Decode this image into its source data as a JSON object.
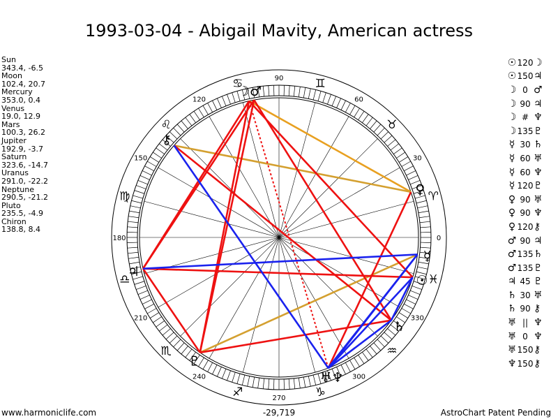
{
  "title": "1993-03-04 - Abigail Mavity, American actress",
  "planets": [
    {
      "name": "Sun",
      "pos": "343.4, -6.5",
      "glyph": "☉"
    },
    {
      "name": "Moon",
      "pos": "102.4, 20.7",
      "glyph": "☽"
    },
    {
      "name": "Mercury",
      "pos": "353.0, 0.4",
      "glyph": "☿"
    },
    {
      "name": "Venus",
      "pos": "19.0, 12.9",
      "glyph": "♀"
    },
    {
      "name": "Mars",
      "pos": "100.3, 26.2",
      "glyph": "♂"
    },
    {
      "name": "Jupiter",
      "pos": "192.9, -3.7",
      "glyph": "♃"
    },
    {
      "name": "Saturn",
      "pos": "323.6, -14.7",
      "glyph": "♄"
    },
    {
      "name": "Uranus",
      "pos": "291.0, -22.2",
      "glyph": "♅"
    },
    {
      "name": "Neptune",
      "pos": "290.5, -21.2",
      "glyph": "♆"
    },
    {
      "name": "Pluto",
      "pos": "235.5, -4.9",
      "glyph": "♇"
    },
    {
      "name": "Chiron",
      "pos": "138.8, 8.4",
      "glyph": "⚷"
    }
  ],
  "aspects": [
    {
      "p1": "☉",
      "angle": "120",
      "p2": "☽"
    },
    {
      "p1": "☉",
      "angle": "150",
      "p2": "♃"
    },
    {
      "p1": "☽",
      "angle": "0",
      "p2": "♂"
    },
    {
      "p1": "☽",
      "angle": "90",
      "p2": "♃"
    },
    {
      "p1": "☽",
      "angle": "#",
      "p2": "♆"
    },
    {
      "p1": "☽",
      "angle": "135",
      "p2": "♇"
    },
    {
      "p1": "☿",
      "angle": "30",
      "p2": "♄"
    },
    {
      "p1": "☿",
      "angle": "60",
      "p2": "♅"
    },
    {
      "p1": "☿",
      "angle": "60",
      "p2": "♆"
    },
    {
      "p1": "☿",
      "angle": "120",
      "p2": "♇"
    },
    {
      "p1": "♀",
      "angle": "90",
      "p2": "♅"
    },
    {
      "p1": "♀",
      "angle": "90",
      "p2": "♆"
    },
    {
      "p1": "♀",
      "angle": "120",
      "p2": "⚷"
    },
    {
      "p1": "♂",
      "angle": "90",
      "p2": "♃"
    },
    {
      "p1": "♂",
      "angle": "135",
      "p2": "♄"
    },
    {
      "p1": "♂",
      "angle": "135",
      "p2": "♇"
    },
    {
      "p1": "♃",
      "angle": "45",
      "p2": "♇"
    },
    {
      "p1": "♄",
      "angle": "30",
      "p2": "♅"
    },
    {
      "p1": "♄",
      "angle": "90",
      "p2": "⚷"
    },
    {
      "p1": "♅",
      "angle": "||",
      "p2": "♆"
    },
    {
      "p1": "♅",
      "angle": "0",
      "p2": "♆"
    },
    {
      "p1": "♅",
      "angle": "150",
      "p2": "⚷"
    },
    {
      "p1": "♆",
      "angle": "150",
      "p2": "⚷"
    }
  ],
  "wheel": {
    "degree_labels": [
      "0",
      "30",
      "60",
      "90",
      "120",
      "150",
      "180",
      "210",
      "240",
      "270",
      "300",
      "330"
    ],
    "signs": [
      {
        "glyph": "♈",
        "lon": 15
      },
      {
        "glyph": "♉",
        "lon": 45
      },
      {
        "glyph": "♊",
        "lon": 75
      },
      {
        "glyph": "♋",
        "lon": 105
      },
      {
        "glyph": "♌",
        "lon": 135
      },
      {
        "glyph": "♍",
        "lon": 165
      },
      {
        "glyph": "♎",
        "lon": 195
      },
      {
        "glyph": "♏",
        "lon": 225
      },
      {
        "glyph": "♐",
        "lon": 255
      },
      {
        "glyph": "♑",
        "lon": 285
      },
      {
        "glyph": "♒",
        "lon": 315
      },
      {
        "glyph": "♓",
        "lon": 345
      }
    ],
    "chart_glyphs": [
      {
        "glyph": "☽♂",
        "lon": 101.3
      },
      {
        "glyph": "⚷",
        "lon": 138.8
      },
      {
        "glyph": "♃",
        "lon": 192.9
      },
      {
        "glyph": "♀",
        "lon": 19.0
      },
      {
        "glyph": "☿",
        "lon": 353.0
      },
      {
        "glyph": "☉",
        "lon": 343.4
      },
      {
        "glyph": "♄",
        "lon": 323.6
      },
      {
        "glyph": "♇",
        "lon": 235.5
      },
      {
        "glyph": "♅♆",
        "lon": 290.7
      }
    ],
    "lines": [
      {
        "a": 102.4,
        "b": 19.0,
        "color": "#e8a020",
        "dash": false
      },
      {
        "a": 138.8,
        "b": 19.0,
        "color": "#d4a030",
        "dash": false
      },
      {
        "a": 235.5,
        "b": 353.0,
        "color": "#d4a030",
        "dash": false
      },
      {
        "a": 102.4,
        "b": 343.4,
        "color": "#ee1111",
        "dash": false
      },
      {
        "a": 100.3,
        "b": 192.9,
        "color": "#ee1111",
        "dash": false
      },
      {
        "a": 102.4,
        "b": 192.9,
        "color": "#ee1111",
        "dash": false
      },
      {
        "a": 100.3,
        "b": 235.5,
        "color": "#ee1111",
        "dash": false
      },
      {
        "a": 102.4,
        "b": 235.5,
        "color": "#ee1111",
        "dash": false
      },
      {
        "a": 100.3,
        "b": 323.6,
        "color": "#ee1111",
        "dash": false
      },
      {
        "a": 192.9,
        "b": 235.5,
        "color": "#ee1111",
        "dash": false
      },
      {
        "a": 192.9,
        "b": 343.4,
        "color": "#ee1111",
        "dash": false
      },
      {
        "a": 19.0,
        "b": 290.7,
        "color": "#ee1111",
        "dash": false
      },
      {
        "a": 235.5,
        "b": 323.6,
        "color": "#ee1111",
        "dash": false
      },
      {
        "a": 323.6,
        "b": 138.8,
        "color": "#ee1111",
        "dash": false
      },
      {
        "a": 102.4,
        "b": 290.7,
        "color": "#ee1111",
        "dash": true
      },
      {
        "a": 138.8,
        "b": 290.7,
        "color": "#1a22ee",
        "dash": false
      },
      {
        "a": 192.9,
        "b": 353.0,
        "color": "#1a22ee",
        "dash": false
      },
      {
        "a": 353.0,
        "b": 290.5,
        "color": "#1a22ee",
        "dash": false
      },
      {
        "a": 353.0,
        "b": 291.0,
        "color": "#1a22ee",
        "dash": false
      },
      {
        "a": 323.6,
        "b": 290.7,
        "color": "#1a22ee",
        "dash": false
      },
      {
        "a": 343.4,
        "b": 290.7,
        "color": "#1a22ee",
        "dash": false
      },
      {
        "a": 343.4,
        "b": 323.6,
        "color": "#1a22ee",
        "dash": false
      }
    ]
  },
  "chart_data": {
    "type": "astrological_wheel",
    "title": "1993-03-04 - Abigail Mavity, American actress",
    "bodies": [
      {
        "name": "Sun",
        "longitude": 343.4,
        "latitude": -6.5
      },
      {
        "name": "Moon",
        "longitude": 102.4,
        "latitude": 20.7
      },
      {
        "name": "Mercury",
        "longitude": 353.0,
        "latitude": 0.4
      },
      {
        "name": "Venus",
        "longitude": 19.0,
        "latitude": 12.9
      },
      {
        "name": "Mars",
        "longitude": 100.3,
        "latitude": 26.2
      },
      {
        "name": "Jupiter",
        "longitude": 192.9,
        "latitude": -3.7
      },
      {
        "name": "Saturn",
        "longitude": 323.6,
        "latitude": -14.7
      },
      {
        "name": "Uranus",
        "longitude": 291.0,
        "latitude": -22.2
      },
      {
        "name": "Neptune",
        "longitude": 290.5,
        "latitude": -21.2
      },
      {
        "name": "Pluto",
        "longitude": 235.5,
        "latitude": -4.9
      },
      {
        "name": "Chiron",
        "longitude": 138.8,
        "latitude": 8.4
      }
    ],
    "degree_ticks": [
      0,
      30,
      60,
      90,
      120,
      150,
      180,
      210,
      240,
      270,
      300,
      330
    ]
  },
  "footer": {
    "left": "www.harmoniclife.com",
    "center": "-29,719",
    "right": "AstroChart Patent Pending"
  }
}
